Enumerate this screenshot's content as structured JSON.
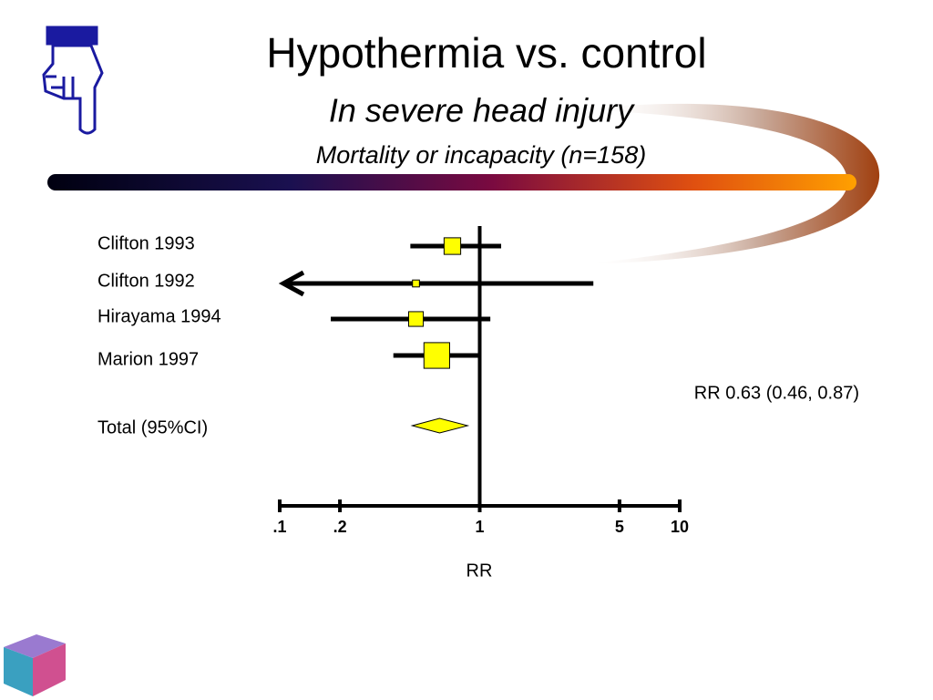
{
  "chart_data": {
    "type": "forest",
    "title": "Hypothermia vs. control",
    "subtitle": "In severe head injury",
    "caption": "Mortality or incapacity (n=158)",
    "categories": [
      "Clifton 1993",
      "Clifton 1992",
      "Hirayama 1994",
      "Marion 1997"
    ],
    "values": [
      0.73,
      0.48,
      0.48,
      0.61
    ],
    "lower": [
      0.45,
      0.1,
      0.18,
      0.37
    ],
    "upper": [
      1.28,
      3.7,
      1.13,
      0.98
    ],
    "weights": [
      23,
      4,
      18,
      55
    ],
    "total": {
      "label": "Total (95%CI)",
      "value": 0.63,
      "lower": 0.46,
      "upper": 0.87
    },
    "annotation": "RR 0.63 (0.46, 0.87)",
    "xlabel": "RR",
    "xscale": "log",
    "xlim": [
      0.1,
      10
    ],
    "xticks": [
      {
        "value": 0.1,
        "label": ".1"
      },
      {
        "value": 0.2,
        "label": ".2"
      },
      1,
      5,
      10
    ],
    "color": "#ffff00"
  }
}
